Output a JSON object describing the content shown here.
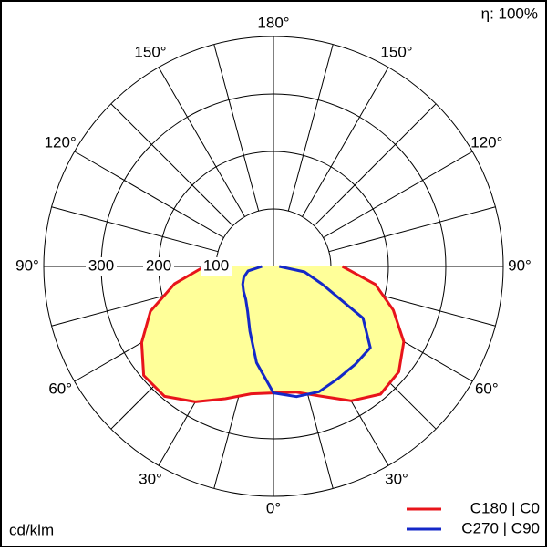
{
  "chart_data": {
    "type": "polar",
    "efficiency_label": "η: 100%",
    "unit_label": "cd/klm",
    "gamma": [
      0,
      10,
      20,
      30,
      40,
      50,
      60,
      70,
      80,
      90
    ],
    "rlim": [
      0,
      400
    ],
    "rticks": [
      100,
      200,
      300
    ],
    "angle_ticks": [
      {
        "value": 0,
        "label": "0°"
      },
      {
        "value": 30,
        "label": "30°"
      },
      {
        "value": 60,
        "label": "60°"
      },
      {
        "value": 90,
        "label": "90°"
      },
      {
        "value": 120,
        "label": "120°"
      },
      {
        "value": 150,
        "label": "150°"
      },
      {
        "value": 180,
        "label": "180°"
      }
    ],
    "legend": "bottom-right",
    "series": [
      {
        "name": "C180 | C0",
        "color": "#e8141b",
        "fill": "#ffff99",
        "left": [
          220,
          225,
          245,
          272,
          295,
          295,
          265,
          228,
          175,
          120
        ],
        "right": [
          220,
          222,
          240,
          270,
          290,
          285,
          262,
          222,
          180,
          120
        ]
      },
      {
        "name": "C270 | C90",
        "color": "#1428c8",
        "fill": "none",
        "left": [
          220,
          170,
          120,
          90,
          75,
          68,
          62,
          55,
          45,
          20
        ],
        "right": [
          220,
          230,
          232,
          225,
          222,
          220,
          180,
          90,
          55,
          10
        ]
      }
    ]
  }
}
